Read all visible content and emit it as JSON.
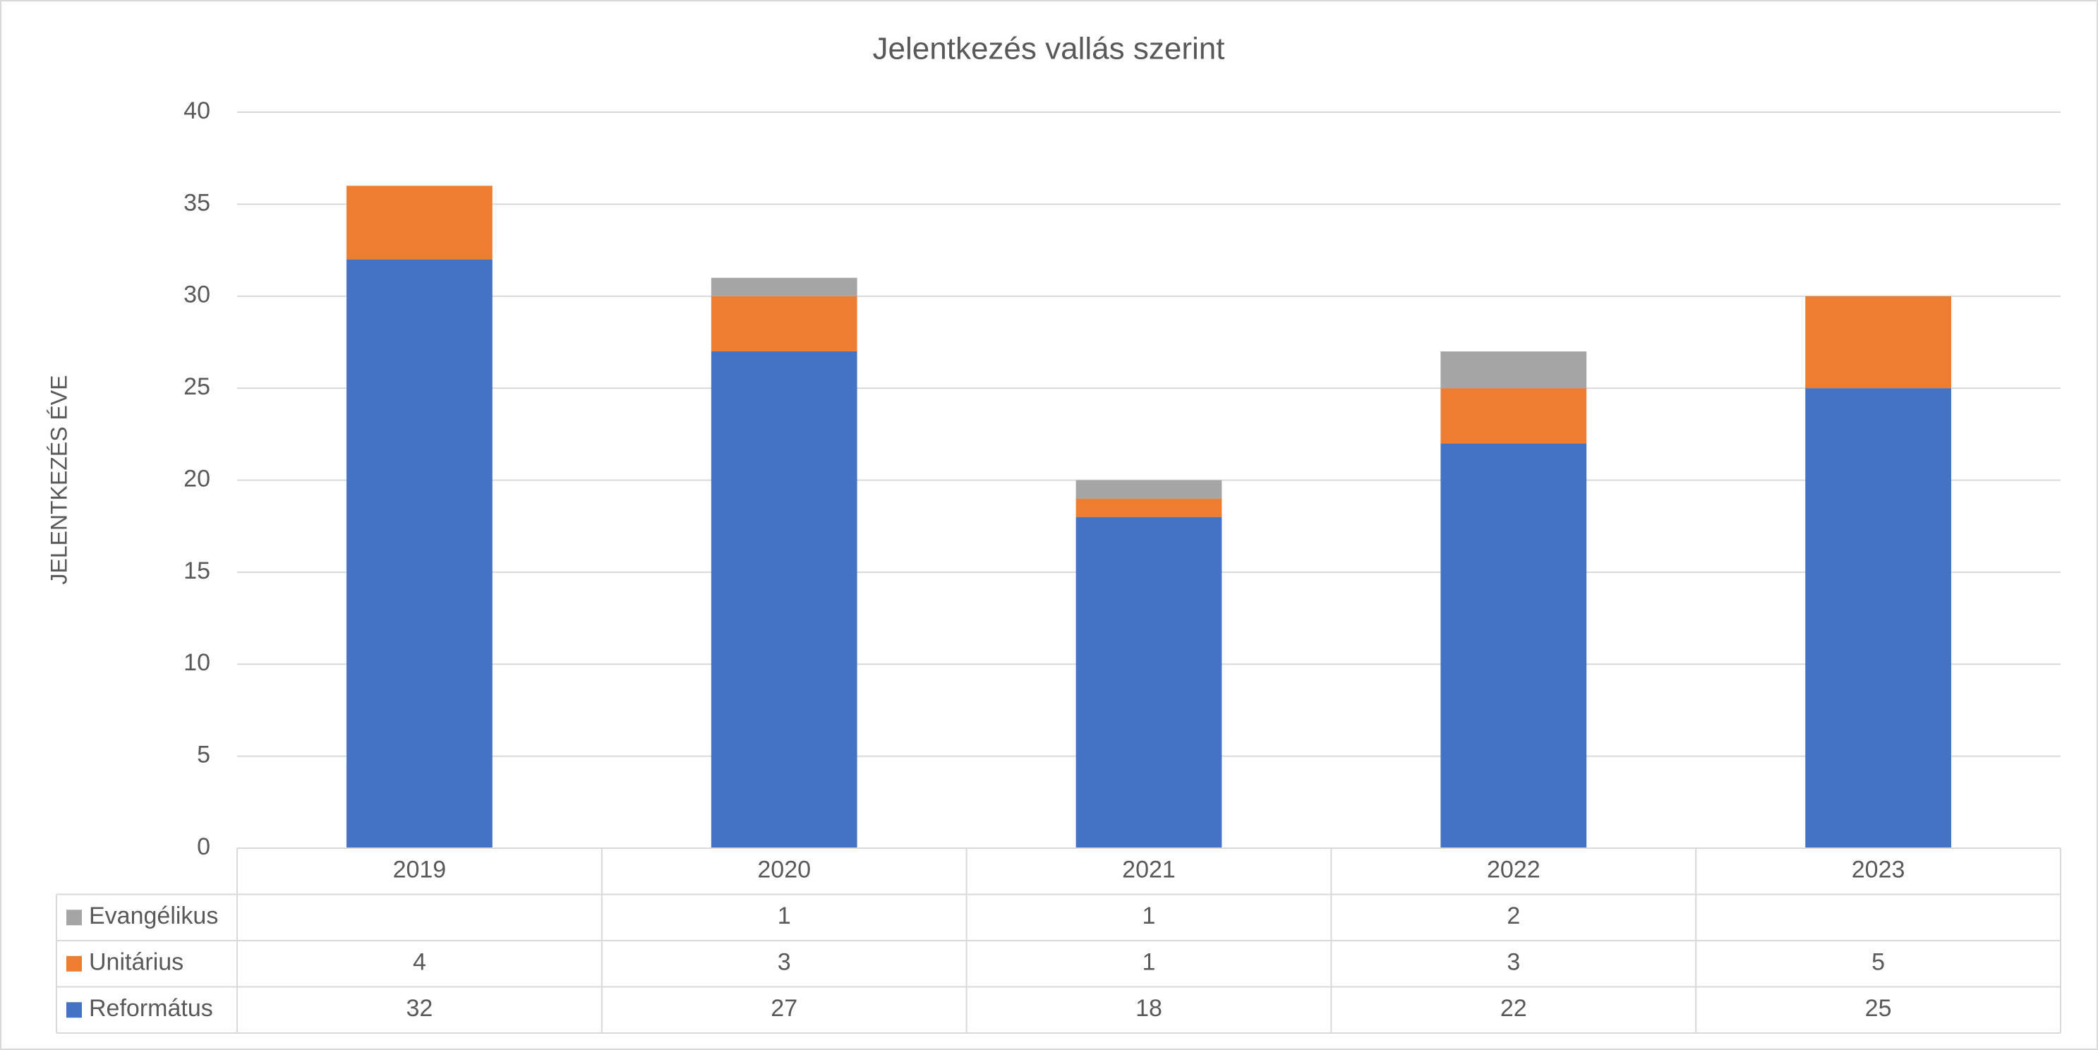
{
  "chart_data": {
    "type": "stacked_bar",
    "title": "Jelentkezés vallás szerint",
    "y_label": "JELENTKEZÉS ÉVE",
    "categories": [
      "2019",
      "2020",
      "2021",
      "2022",
      "2023"
    ],
    "series": [
      {
        "name": "Református",
        "color": "#4472c4",
        "values": [
          32,
          27,
          18,
          22,
          25
        ]
      },
      {
        "name": "Unitárius",
        "color": "#ed7d31",
        "values": [
          4,
          3,
          1,
          3,
          5
        ]
      },
      {
        "name": "Evangélikus",
        "color": "#a5a5a5",
        "values": [
          null,
          1,
          1,
          2,
          null
        ]
      }
    ],
    "ylim": [
      0,
      40
    ],
    "yticks": [
      0,
      5,
      10,
      15,
      20,
      25,
      30,
      35,
      40
    ],
    "grid": true,
    "data_table": true
  }
}
